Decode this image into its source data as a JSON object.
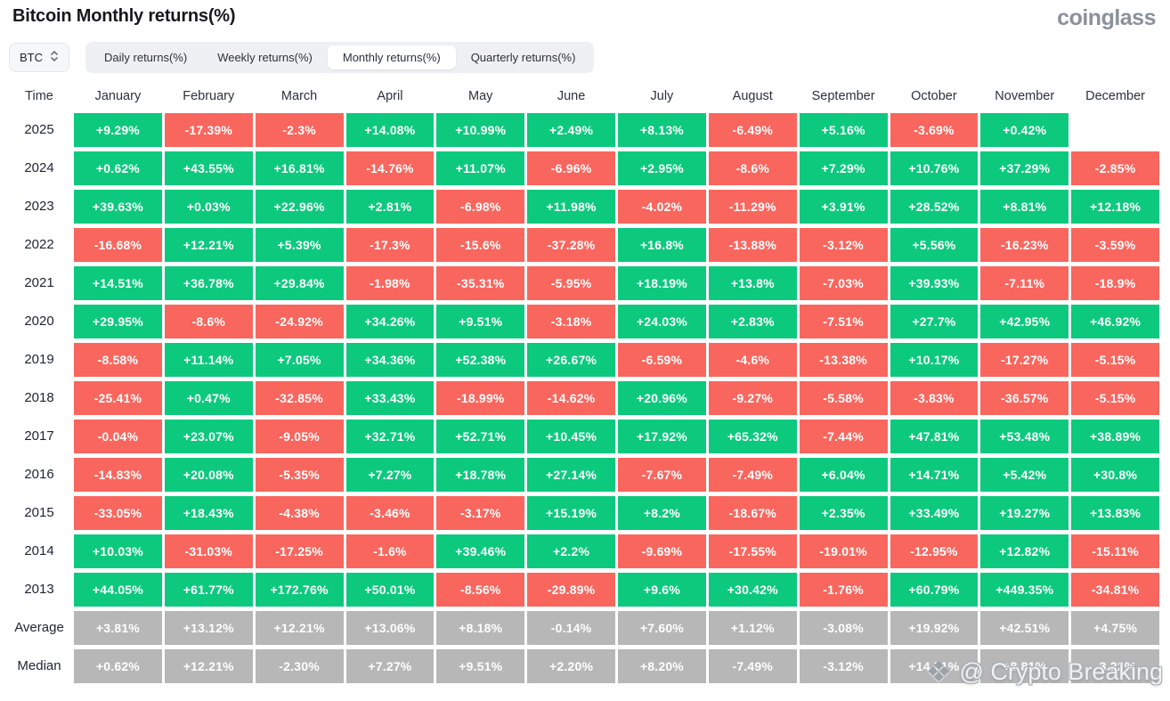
{
  "title": "Bitcoin Monthly returns(%)",
  "brand": "coinglass",
  "toolbar": {
    "symbol": "BTC",
    "tabs": [
      {
        "label": "Daily returns(%)",
        "active": false
      },
      {
        "label": "Weekly returns(%)",
        "active": false
      },
      {
        "label": "Monthly returns(%)",
        "active": true
      },
      {
        "label": "Quarterly returns(%)",
        "active": false
      }
    ]
  },
  "colors": {
    "green": "#0cc97e",
    "red": "#f9665e",
    "neutral": "#b7b7b7"
  },
  "watermark": {
    "icon": "crypto-diamond-icon",
    "text": "@ Crypto Breaking"
  },
  "table": {
    "columns": [
      "Time",
      "January",
      "February",
      "March",
      "April",
      "May",
      "June",
      "July",
      "August",
      "September",
      "October",
      "November",
      "December"
    ],
    "rows": [
      {
        "label": "2025",
        "cells": [
          [
            "+9.29%",
            "g"
          ],
          [
            "-17.39%",
            "r"
          ],
          [
            "-2.3%",
            "r"
          ],
          [
            "+14.08%",
            "g"
          ],
          [
            "+10.99%",
            "g"
          ],
          [
            "+2.49%",
            "g"
          ],
          [
            "+8.13%",
            "g"
          ],
          [
            "-6.49%",
            "r"
          ],
          [
            "+5.16%",
            "g"
          ],
          [
            "-3.69%",
            "r"
          ],
          [
            "+0.42%",
            "g"
          ],
          [
            "",
            ""
          ]
        ]
      },
      {
        "label": "2024",
        "cells": [
          [
            "+0.62%",
            "g"
          ],
          [
            "+43.55%",
            "g"
          ],
          [
            "+16.81%",
            "g"
          ],
          [
            "-14.76%",
            "r"
          ],
          [
            "+11.07%",
            "g"
          ],
          [
            "-6.96%",
            "r"
          ],
          [
            "+2.95%",
            "g"
          ],
          [
            "-8.6%",
            "r"
          ],
          [
            "+7.29%",
            "g"
          ],
          [
            "+10.76%",
            "g"
          ],
          [
            "+37.29%",
            "g"
          ],
          [
            "-2.85%",
            "r"
          ]
        ]
      },
      {
        "label": "2023",
        "cells": [
          [
            "+39.63%",
            "g"
          ],
          [
            "+0.03%",
            "g"
          ],
          [
            "+22.96%",
            "g"
          ],
          [
            "+2.81%",
            "g"
          ],
          [
            "-6.98%",
            "r"
          ],
          [
            "+11.98%",
            "g"
          ],
          [
            "-4.02%",
            "r"
          ],
          [
            "-11.29%",
            "r"
          ],
          [
            "+3.91%",
            "g"
          ],
          [
            "+28.52%",
            "g"
          ],
          [
            "+8.81%",
            "g"
          ],
          [
            "+12.18%",
            "g"
          ]
        ]
      },
      {
        "label": "2022",
        "cells": [
          [
            "-16.68%",
            "r"
          ],
          [
            "+12.21%",
            "g"
          ],
          [
            "+5.39%",
            "g"
          ],
          [
            "-17.3%",
            "r"
          ],
          [
            "-15.6%",
            "r"
          ],
          [
            "-37.28%",
            "r"
          ],
          [
            "+16.8%",
            "g"
          ],
          [
            "-13.88%",
            "r"
          ],
          [
            "-3.12%",
            "r"
          ],
          [
            "+5.56%",
            "g"
          ],
          [
            "-16.23%",
            "r"
          ],
          [
            "-3.59%",
            "r"
          ]
        ]
      },
      {
        "label": "2021",
        "cells": [
          [
            "+14.51%",
            "g"
          ],
          [
            "+36.78%",
            "g"
          ],
          [
            "+29.84%",
            "g"
          ],
          [
            "-1.98%",
            "r"
          ],
          [
            "-35.31%",
            "r"
          ],
          [
            "-5.95%",
            "r"
          ],
          [
            "+18.19%",
            "g"
          ],
          [
            "+13.8%",
            "g"
          ],
          [
            "-7.03%",
            "r"
          ],
          [
            "+39.93%",
            "g"
          ],
          [
            "-7.11%",
            "r"
          ],
          [
            "-18.9%",
            "r"
          ]
        ]
      },
      {
        "label": "2020",
        "cells": [
          [
            "+29.95%",
            "g"
          ],
          [
            "-8.6%",
            "r"
          ],
          [
            "-24.92%",
            "r"
          ],
          [
            "+34.26%",
            "g"
          ],
          [
            "+9.51%",
            "g"
          ],
          [
            "-3.18%",
            "r"
          ],
          [
            "+24.03%",
            "g"
          ],
          [
            "+2.83%",
            "g"
          ],
          [
            "-7.51%",
            "r"
          ],
          [
            "+27.7%",
            "g"
          ],
          [
            "+42.95%",
            "g"
          ],
          [
            "+46.92%",
            "g"
          ]
        ]
      },
      {
        "label": "2019",
        "cells": [
          [
            "-8.58%",
            "r"
          ],
          [
            "+11.14%",
            "g"
          ],
          [
            "+7.05%",
            "g"
          ],
          [
            "+34.36%",
            "g"
          ],
          [
            "+52.38%",
            "g"
          ],
          [
            "+26.67%",
            "g"
          ],
          [
            "-6.59%",
            "r"
          ],
          [
            "-4.6%",
            "r"
          ],
          [
            "-13.38%",
            "r"
          ],
          [
            "+10.17%",
            "g"
          ],
          [
            "-17.27%",
            "r"
          ],
          [
            "-5.15%",
            "r"
          ]
        ]
      },
      {
        "label": "2018",
        "cells": [
          [
            "-25.41%",
            "r"
          ],
          [
            "+0.47%",
            "g"
          ],
          [
            "-32.85%",
            "r"
          ],
          [
            "+33.43%",
            "g"
          ],
          [
            "-18.99%",
            "r"
          ],
          [
            "-14.62%",
            "r"
          ],
          [
            "+20.96%",
            "g"
          ],
          [
            "-9.27%",
            "r"
          ],
          [
            "-5.58%",
            "r"
          ],
          [
            "-3.83%",
            "r"
          ],
          [
            "-36.57%",
            "r"
          ],
          [
            "-5.15%",
            "r"
          ]
        ]
      },
      {
        "label": "2017",
        "cells": [
          [
            "-0.04%",
            "r"
          ],
          [
            "+23.07%",
            "g"
          ],
          [
            "-9.05%",
            "r"
          ],
          [
            "+32.71%",
            "g"
          ],
          [
            "+52.71%",
            "g"
          ],
          [
            "+10.45%",
            "g"
          ],
          [
            "+17.92%",
            "g"
          ],
          [
            "+65.32%",
            "g"
          ],
          [
            "-7.44%",
            "r"
          ],
          [
            "+47.81%",
            "g"
          ],
          [
            "+53.48%",
            "g"
          ],
          [
            "+38.89%",
            "g"
          ]
        ]
      },
      {
        "label": "2016",
        "cells": [
          [
            "-14.83%",
            "r"
          ],
          [
            "+20.08%",
            "g"
          ],
          [
            "-5.35%",
            "r"
          ],
          [
            "+7.27%",
            "g"
          ],
          [
            "+18.78%",
            "g"
          ],
          [
            "+27.14%",
            "g"
          ],
          [
            "-7.67%",
            "r"
          ],
          [
            "-7.49%",
            "r"
          ],
          [
            "+6.04%",
            "g"
          ],
          [
            "+14.71%",
            "g"
          ],
          [
            "+5.42%",
            "g"
          ],
          [
            "+30.8%",
            "g"
          ]
        ]
      },
      {
        "label": "2015",
        "cells": [
          [
            "-33.05%",
            "r"
          ],
          [
            "+18.43%",
            "g"
          ],
          [
            "-4.38%",
            "r"
          ],
          [
            "-3.46%",
            "r"
          ],
          [
            "-3.17%",
            "r"
          ],
          [
            "+15.19%",
            "g"
          ],
          [
            "+8.2%",
            "g"
          ],
          [
            "-18.67%",
            "r"
          ],
          [
            "+2.35%",
            "g"
          ],
          [
            "+33.49%",
            "g"
          ],
          [
            "+19.27%",
            "g"
          ],
          [
            "+13.83%",
            "g"
          ]
        ]
      },
      {
        "label": "2014",
        "cells": [
          [
            "+10.03%",
            "g"
          ],
          [
            "-31.03%",
            "r"
          ],
          [
            "-17.25%",
            "r"
          ],
          [
            "-1.6%",
            "r"
          ],
          [
            "+39.46%",
            "g"
          ],
          [
            "+2.2%",
            "g"
          ],
          [
            "-9.69%",
            "r"
          ],
          [
            "-17.55%",
            "r"
          ],
          [
            "-19.01%",
            "r"
          ],
          [
            "-12.95%",
            "r"
          ],
          [
            "+12.82%",
            "g"
          ],
          [
            "-15.11%",
            "r"
          ]
        ]
      },
      {
        "label": "2013",
        "cells": [
          [
            "+44.05%",
            "g"
          ],
          [
            "+61.77%",
            "g"
          ],
          [
            "+172.76%",
            "g"
          ],
          [
            "+50.01%",
            "g"
          ],
          [
            "-8.56%",
            "r"
          ],
          [
            "-29.89%",
            "r"
          ],
          [
            "+9.6%",
            "g"
          ],
          [
            "+30.42%",
            "g"
          ],
          [
            "-1.76%",
            "r"
          ],
          [
            "+60.79%",
            "g"
          ],
          [
            "+449.35%",
            "g"
          ],
          [
            "-34.81%",
            "r"
          ]
        ]
      },
      {
        "label": "Average",
        "cells": [
          [
            "+3.81%",
            "n"
          ],
          [
            "+13.12%",
            "n"
          ],
          [
            "+12.21%",
            "n"
          ],
          [
            "+13.06%",
            "n"
          ],
          [
            "+8.18%",
            "n"
          ],
          [
            "-0.14%",
            "n"
          ],
          [
            "+7.60%",
            "n"
          ],
          [
            "+1.12%",
            "n"
          ],
          [
            "-3.08%",
            "n"
          ],
          [
            "+19.92%",
            "n"
          ],
          [
            "+42.51%",
            "n"
          ],
          [
            "+4.75%",
            "n"
          ]
        ]
      },
      {
        "label": "Median",
        "cells": [
          [
            "+0.62%",
            "n"
          ],
          [
            "+12.21%",
            "n"
          ],
          [
            "-2.30%",
            "n"
          ],
          [
            "+7.27%",
            "n"
          ],
          [
            "+9.51%",
            "n"
          ],
          [
            "+2.20%",
            "n"
          ],
          [
            "+8.20%",
            "n"
          ],
          [
            "-7.49%",
            "n"
          ],
          [
            "-3.12%",
            "n"
          ],
          [
            "+14.71%",
            "n"
          ],
          [
            "+8.81%",
            "n"
          ],
          [
            "-3.22%",
            "n"
          ]
        ]
      }
    ]
  }
}
